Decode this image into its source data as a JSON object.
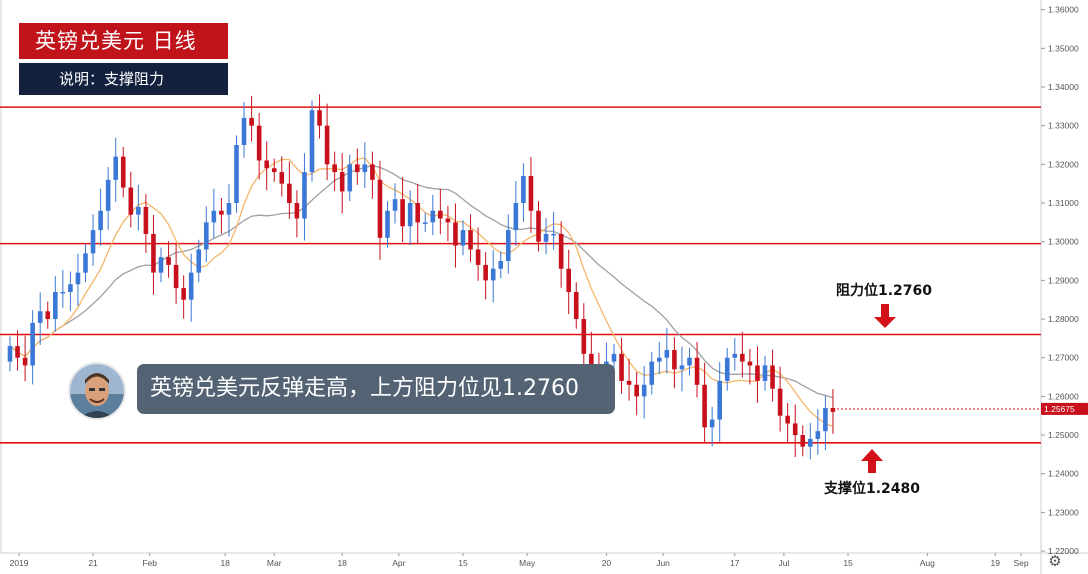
{
  "title": "英镑兑美元  日线",
  "subtitle": "说明：支撑阻力",
  "annotation": "英镑兑美元反弹走高，上方阻力位见1.2760",
  "resistance_label": "阻力位1.2760",
  "support_label": "支撑位1.2480",
  "current_price_label": "1.25675",
  "colors": {
    "bull": "#3a77d6",
    "bear": "#c8101d",
    "level_line": "#e50f0f",
    "ma_fast": "#f5b56a",
    "ma_slow": "#a0a0a0",
    "price_tag": "#c8101d",
    "title_bg": "#c0131a",
    "subtitle_bg": "#13213f",
    "bubble_bg": "#536374"
  },
  "icons": {
    "avatar": "presenter-avatar",
    "settings": "gear-icon",
    "arrow_down": "down-arrow-icon",
    "arrow_up": "up-arrow-icon"
  },
  "chart_data": {
    "type": "candlestick",
    "x_tick_labels": [
      "2019",
      "21",
      "Feb",
      "18",
      "Mar",
      "18",
      "Apr",
      "15",
      "May",
      "20",
      "Jun",
      "17",
      "Jul",
      "15",
      "Aug",
      "19",
      "Sep"
    ],
    "y_tick_labels": [
      "1.36000",
      "1.35000",
      "1.34000",
      "1.33000",
      "1.32000",
      "1.31000",
      "1.30000",
      "1.29000",
      "1.28000",
      "1.27000",
      "1.26000",
      "1.25000",
      "1.24000",
      "1.23000",
      "1.22000"
    ],
    "ylim": [
      1.2195,
      1.3625
    ],
    "horizontal_levels": [
      1.3348,
      1.2995,
      1.276,
      1.248
    ],
    "last_price": 1.25675,
    "close": [
      1.273,
      1.27,
      1.268,
      1.279,
      1.282,
      1.28,
      1.287,
      1.287,
      1.289,
      1.292,
      1.297,
      1.303,
      1.308,
      1.316,
      1.322,
      1.314,
      1.307,
      1.309,
      1.302,
      1.292,
      1.296,
      1.294,
      1.288,
      1.285,
      1.292,
      1.298,
      1.305,
      1.308,
      1.307,
      1.31,
      1.325,
      1.332,
      1.33,
      1.321,
      1.319,
      1.318,
      1.315,
      1.31,
      1.306,
      1.318,
      1.334,
      1.33,
      1.32,
      1.318,
      1.313,
      1.32,
      1.318,
      1.32,
      1.316,
      1.301,
      1.308,
      1.311,
      1.304,
      1.31,
      1.305,
      1.305,
      1.308,
      1.306,
      1.305,
      1.299,
      1.303,
      1.298,
      1.294,
      1.29,
      1.293,
      1.295,
      1.303,
      1.31,
      1.317,
      1.308,
      1.3,
      1.302,
      1.302,
      1.293,
      1.287,
      1.28,
      1.271,
      1.268,
      1.266,
      1.269,
      1.271,
      1.264,
      1.263,
      1.26,
      1.263,
      1.269,
      1.27,
      1.272,
      1.267,
      1.268,
      1.27,
      1.263,
      1.252,
      1.254,
      1.264,
      1.27,
      1.271,
      1.269,
      1.268,
      1.264,
      1.268,
      1.262,
      1.255,
      1.253,
      1.25,
      1.247,
      1.249,
      1.251,
      1.257,
      1.256
    ]
  }
}
